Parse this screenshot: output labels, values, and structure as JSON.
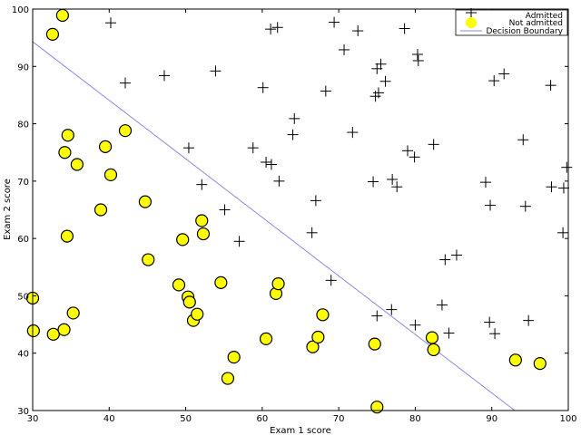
{
  "chart_data": {
    "type": "scatter",
    "title": "",
    "xlabel": "Exam 1 score",
    "ylabel": "Exam 2 score",
    "xlim": [
      30,
      100
    ],
    "ylim": [
      30,
      100
    ],
    "xticks": [
      30,
      40,
      50,
      60,
      70,
      80,
      90,
      100
    ],
    "yticks": [
      30,
      40,
      50,
      60,
      70,
      80,
      90,
      100
    ],
    "xtick_labels": [
      "30",
      "40",
      "50",
      "60",
      "70",
      "80",
      "90",
      "100"
    ],
    "ytick_labels": [
      "30",
      "40",
      "50",
      "60",
      "70",
      "80",
      "90",
      "100"
    ],
    "grid": false,
    "legend_position": "top-right",
    "colors": {
      "not_admitted_fill": "#ffff00",
      "not_admitted_edge": "#000000",
      "admitted_marker": "#000000",
      "boundary": "#8a8ae6"
    },
    "legend": [
      {
        "label": "Admitted",
        "marker": "plus"
      },
      {
        "label": "Not admitted",
        "marker": "circle"
      },
      {
        "label": "Decision Boundary",
        "marker": "line"
      }
    ],
    "series": [
      {
        "name": "Admitted",
        "marker": "plus",
        "points": [
          [
            40.2,
            97.6
          ],
          [
            42.1,
            87.1
          ],
          [
            47.2,
            88.4
          ],
          [
            50.4,
            75.8
          ],
          [
            52.1,
            69.4
          ],
          [
            53.9,
            89.2
          ],
          [
            55.1,
            65.0
          ],
          [
            57.0,
            59.5
          ],
          [
            58.8,
            75.8
          ],
          [
            60.1,
            86.3
          ],
          [
            60.5,
            73.3
          ],
          [
            61.1,
            96.5
          ],
          [
            61.2,
            72.9
          ],
          [
            62.0,
            96.8
          ],
          [
            62.2,
            70.0
          ],
          [
            64.0,
            78.1
          ],
          [
            64.2,
            80.9
          ],
          [
            66.5,
            61.0
          ],
          [
            67.0,
            66.6
          ],
          [
            68.3,
            85.7
          ],
          [
            69.0,
            52.7
          ],
          [
            69.4,
            97.7
          ],
          [
            70.7,
            92.9
          ],
          [
            71.8,
            78.5
          ],
          [
            72.5,
            96.2
          ],
          [
            74.5,
            69.9
          ],
          [
            74.8,
            84.8
          ],
          [
            75.0,
            89.6
          ],
          [
            75.0,
            46.5
          ],
          [
            75.2,
            85.4
          ],
          [
            75.5,
            90.4
          ],
          [
            76.1,
            87.4
          ],
          [
            76.9,
            47.6
          ],
          [
            77.0,
            70.3
          ],
          [
            77.6,
            69.0
          ],
          [
            78.6,
            96.6
          ],
          [
            79.0,
            75.3
          ],
          [
            79.9,
            74.2
          ],
          [
            80.0,
            44.9
          ],
          [
            80.3,
            92.1
          ],
          [
            80.4,
            91.0
          ],
          [
            82.4,
            76.4
          ],
          [
            83.5,
            48.4
          ],
          [
            83.9,
            56.3
          ],
          [
            84.4,
            43.5
          ],
          [
            85.4,
            57.1
          ],
          [
            89.2,
            69.8
          ],
          [
            89.7,
            45.4
          ],
          [
            89.8,
            65.8
          ],
          [
            90.3,
            87.5
          ],
          [
            90.4,
            43.4
          ],
          [
            91.6,
            88.7
          ],
          [
            94.1,
            77.2
          ],
          [
            94.4,
            65.6
          ],
          [
            94.8,
            45.7
          ],
          [
            97.7,
            86.7
          ],
          [
            97.8,
            69.0
          ],
          [
            99.3,
            61.0
          ],
          [
            99.4,
            68.8
          ],
          [
            99.8,
            72.4
          ]
        ]
      },
      {
        "name": "Not admitted",
        "marker": "circle",
        "points": [
          [
            30.0,
            49.6
          ],
          [
            30.1,
            43.9
          ],
          [
            32.6,
            95.6
          ],
          [
            32.7,
            43.3
          ],
          [
            33.9,
            98.9
          ],
          [
            34.1,
            44.1
          ],
          [
            34.2,
            75.0
          ],
          [
            34.5,
            60.4
          ],
          [
            34.6,
            78.0
          ],
          [
            35.3,
            47.0
          ],
          [
            35.8,
            72.9
          ],
          [
            38.9,
            65.0
          ],
          [
            39.5,
            76.0
          ],
          [
            40.2,
            71.1
          ],
          [
            42.1,
            78.8
          ],
          [
            44.7,
            66.4
          ],
          [
            45.1,
            56.3
          ],
          [
            49.1,
            51.9
          ],
          [
            49.6,
            59.8
          ],
          [
            50.3,
            49.8
          ],
          [
            50.5,
            48.9
          ],
          [
            51.0,
            45.7
          ],
          [
            51.5,
            46.8
          ],
          [
            52.1,
            63.1
          ],
          [
            52.3,
            60.8
          ],
          [
            54.6,
            52.3
          ],
          [
            55.5,
            35.6
          ],
          [
            56.3,
            39.3
          ],
          [
            60.5,
            42.5
          ],
          [
            61.8,
            50.4
          ],
          [
            62.1,
            52.1
          ],
          [
            66.6,
            41.1
          ],
          [
            67.3,
            42.8
          ],
          [
            67.9,
            46.7
          ],
          [
            74.7,
            41.6
          ],
          [
            75.0,
            30.6
          ],
          [
            82.2,
            42.7
          ],
          [
            82.4,
            40.6
          ],
          [
            93.1,
            38.8
          ],
          [
            96.3,
            38.2
          ]
        ]
      },
      {
        "name": "Decision Boundary",
        "marker": "line",
        "points": [
          [
            30.0,
            94.3
          ],
          [
            93.0,
            30.0
          ]
        ]
      }
    ]
  }
}
